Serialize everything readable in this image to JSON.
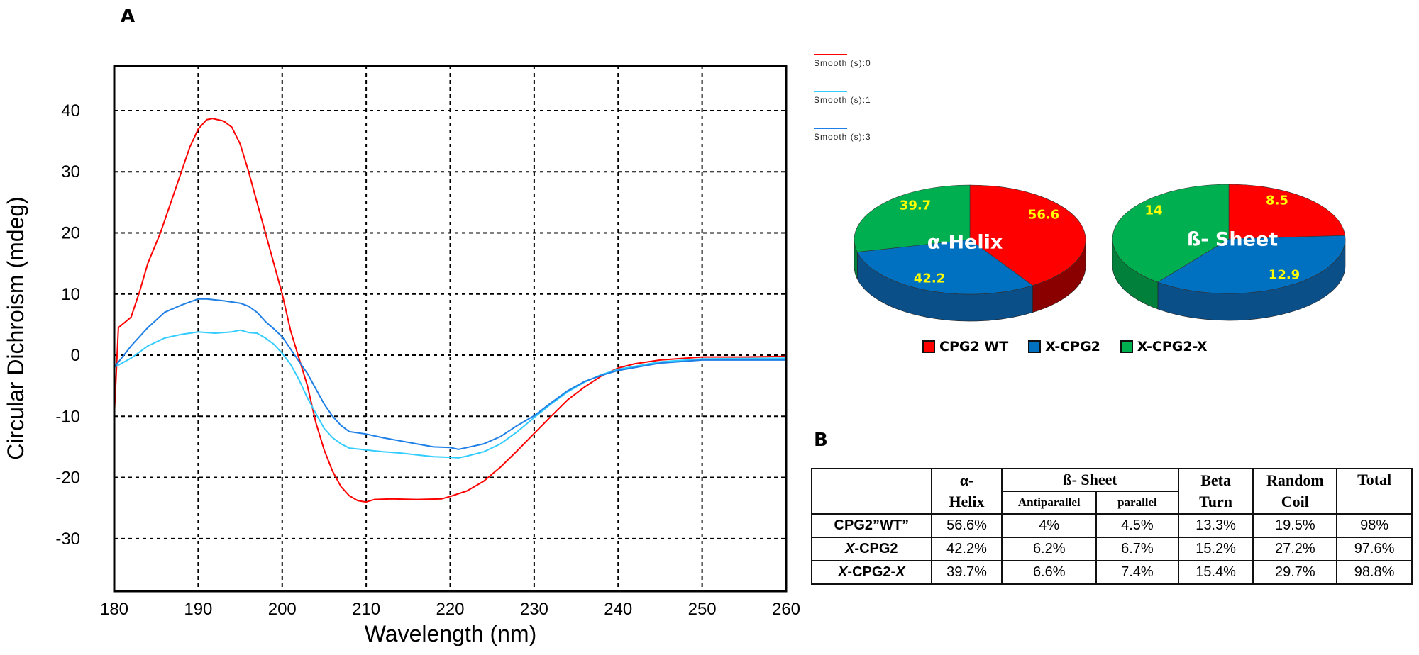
{
  "panels": {
    "a": "A",
    "b": "B"
  },
  "chart_data": [
    {
      "type": "line",
      "xlabel": "Wavelength (nm)",
      "ylabel": "Circular Dichroism (mdeg)",
      "xlim": [
        180,
        260
      ],
      "ylim": [
        -38.6,
        47.3
      ],
      "xticks": [
        180,
        190,
        200,
        210,
        220,
        230,
        240,
        250,
        260
      ],
      "yticks": [
        -30,
        -20,
        -10,
        0,
        10,
        20,
        30,
        40
      ],
      "grid": true,
      "legend": "top-right, outside plot",
      "series": [
        {
          "name": "Smooth (s):0",
          "color": "#ff0000",
          "points": [
            [
              180,
              -10
            ],
            [
              180.5,
              4.5
            ],
            [
              182,
              6.2
            ],
            [
              183,
              10.3
            ],
            [
              184,
              15
            ],
            [
              185.5,
              20
            ],
            [
              187,
              26
            ],
            [
              188,
              30
            ],
            [
              189,
              34
            ],
            [
              190,
              37
            ],
            [
              191,
              38.5
            ],
            [
              191.7,
              38.7
            ],
            [
              193,
              38.3
            ],
            [
              194,
              37.3
            ],
            [
              195,
              34.5
            ],
            [
              196,
              30
            ],
            [
              197,
              25
            ],
            [
              198,
              20
            ],
            [
              199,
              15
            ],
            [
              200,
              10
            ],
            [
              201,
              4
            ],
            [
              202,
              -0.5
            ],
            [
              203,
              -5
            ],
            [
              204,
              -11
            ],
            [
              205,
              -15.5
            ],
            [
              206,
              -19
            ],
            [
              207,
              -21.5
            ],
            [
              208,
              -23
            ],
            [
              209,
              -23.8
            ],
            [
              210,
              -24
            ],
            [
              211,
              -23.6
            ],
            [
              213,
              -23.5
            ],
            [
              216,
              -23.6
            ],
            [
              219,
              -23.5
            ],
            [
              220,
              -23.1
            ],
            [
              222,
              -22.2
            ],
            [
              224,
              -20.6
            ],
            [
              226,
              -18.3
            ],
            [
              228,
              -15.6
            ],
            [
              230,
              -12.8
            ],
            [
              232,
              -10
            ],
            [
              234,
              -7.3
            ],
            [
              236,
              -5.2
            ],
            [
              238,
              -3.4
            ],
            [
              240,
              -2.1
            ],
            [
              242,
              -1.4
            ],
            [
              245,
              -0.8
            ],
            [
              250,
              -0.3
            ],
            [
              255,
              -0.3
            ],
            [
              260,
              -0.2
            ]
          ]
        },
        {
          "name": "Smooth (s):1",
          "color": "#33ccff",
          "points": [
            [
              180,
              -2
            ],
            [
              182,
              -0.5
            ],
            [
              184,
              1.5
            ],
            [
              186,
              2.8
            ],
            [
              188,
              3.4
            ],
            [
              190,
              3.8
            ],
            [
              192,
              3.6
            ],
            [
              194,
              3.8
            ],
            [
              195,
              4.1
            ],
            [
              196,
              3.7
            ],
            [
              197,
              3.6
            ],
            [
              198,
              2.8
            ],
            [
              199,
              1.8
            ],
            [
              200,
              0.3
            ],
            [
              201,
              -1.5
            ],
            [
              202,
              -4
            ],
            [
              203,
              -7
            ],
            [
              204,
              -9.5
            ],
            [
              205,
              -12
            ],
            [
              206,
              -13.5
            ],
            [
              207,
              -14.5
            ],
            [
              208,
              -15.2
            ],
            [
              210,
              -15.5
            ],
            [
              212,
              -15.8
            ],
            [
              214,
              -16
            ],
            [
              216,
              -16.3
            ],
            [
              218,
              -16.6
            ],
            [
              220,
              -16.7
            ],
            [
              221,
              -16.8
            ],
            [
              222,
              -16.5
            ],
            [
              224,
              -15.8
            ],
            [
              226,
              -14.5
            ],
            [
              228,
              -12.5
            ],
            [
              230,
              -10.2
            ],
            [
              232,
              -8
            ],
            [
              234,
              -6
            ],
            [
              236,
              -4.4
            ],
            [
              238,
              -3.2
            ],
            [
              240,
              -2.3
            ],
            [
              245,
              -1.1
            ],
            [
              250,
              -0.6
            ],
            [
              260,
              -0.5
            ]
          ]
        },
        {
          "name": "Smooth (s):3",
          "color": "#1e7fe6",
          "points": [
            [
              180,
              -2
            ],
            [
              182,
              1.5
            ],
            [
              184,
              4.5
            ],
            [
              186,
              7
            ],
            [
              188,
              8.2
            ],
            [
              190,
              9.2
            ],
            [
              191,
              9.2
            ],
            [
              193,
              8.9
            ],
            [
              195,
              8.5
            ],
            [
              196,
              8
            ],
            [
              197,
              7
            ],
            [
              198,
              5.5
            ],
            [
              199,
              4.3
            ],
            [
              200,
              3
            ],
            [
              201,
              1
            ],
            [
              202,
              -1
            ],
            [
              203,
              -3
            ],
            [
              204,
              -5.5
            ],
            [
              205,
              -8
            ],
            [
              206,
              -10
            ],
            [
              207,
              -11.5
            ],
            [
              208,
              -12.5
            ],
            [
              210,
              -12.9
            ],
            [
              212,
              -13.5
            ],
            [
              214,
              -14
            ],
            [
              216,
              -14.5
            ],
            [
              218,
              -15
            ],
            [
              220,
              -15.1
            ],
            [
              221,
              -15.4
            ],
            [
              222,
              -15.1
            ],
            [
              224,
              -14.5
            ],
            [
              226,
              -13.3
            ],
            [
              228,
              -11.5
            ],
            [
              230,
              -9.9
            ],
            [
              232,
              -7.8
            ],
            [
              234,
              -5.8
            ],
            [
              236,
              -4.3
            ],
            [
              238,
              -3.3
            ],
            [
              240,
              -2.5
            ],
            [
              245,
              -1.3
            ],
            [
              250,
              -0.8
            ],
            [
              260,
              -0.8
            ]
          ]
        }
      ]
    },
    {
      "type": "pie",
      "title": "α-Helix",
      "categories": [
        "CPG2 WT",
        "X-CPG2",
        "X-CPG2-X"
      ],
      "values": [
        56.6,
        42.2,
        39.7
      ],
      "style": "3d",
      "legend": "bottom"
    },
    {
      "type": "pie",
      "title": "ß- Sheet",
      "categories": [
        "CPG2 WT",
        "X-CPG2",
        "X-CPG2-X"
      ],
      "values": [
        8.5,
        12.9,
        14
      ],
      "style": "3d",
      "legend": "bottom"
    }
  ],
  "pie_colors": {
    "top": [
      "#ff0000",
      "#0070c0",
      "#00b050"
    ],
    "side": [
      "#8a0000",
      "#0b4f88",
      "#00803a"
    ],
    "label": "#ffff00"
  },
  "pie_legend": [
    "CPG2 WT",
    "X-CPG2",
    "X-CPG2-X"
  ],
  "table": {
    "headers": {
      "helix_1": "α-",
      "helix_2": "Helix",
      "sheet": "ß- Sheet",
      "anti": "Antiparallel",
      "parallel": "parallel",
      "turn_1": "Beta",
      "turn_2": "Turn",
      "coil_1": "Random",
      "coil_2": "Coil",
      "total": "Total"
    },
    "rows": [
      {
        "name": "CPG2”WT”",
        "helix": "56.6%",
        "anti": "4%",
        "parallel": "4.5%",
        "turn": "13.3%",
        "coil": "19.5%",
        "total": "98%"
      },
      {
        "name": "X-CPG2",
        "helix": "42.2%",
        "anti": "6.2%",
        "parallel": "6.7%",
        "turn": "15.2%",
        "coil": "27.2%",
        "total": "97.6%"
      },
      {
        "name": "X-CPG2-X",
        "helix": "39.7%",
        "anti": "6.6%",
        "parallel": "7.4%",
        "turn": "15.4%",
        "coil": "29.7%",
        "total": "98.8%"
      }
    ]
  }
}
